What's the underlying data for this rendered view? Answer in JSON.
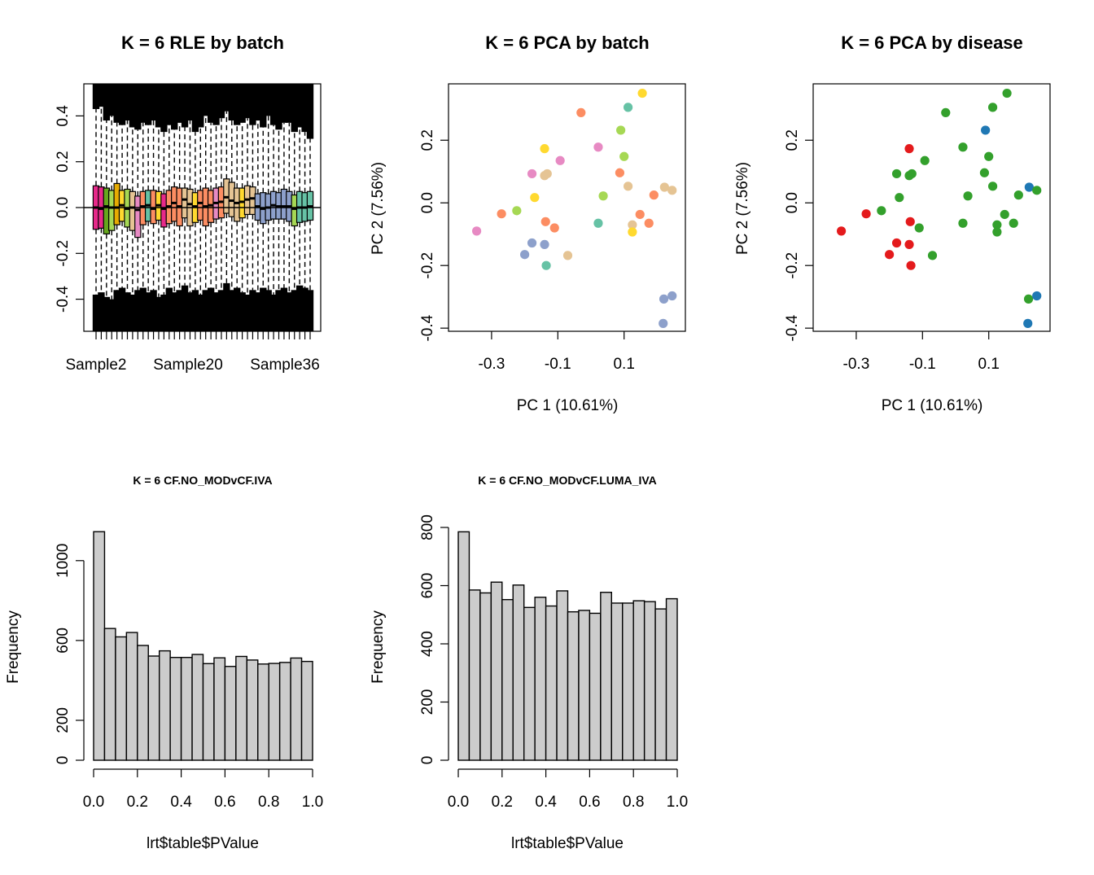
{
  "chart_data": [
    {
      "type": "boxplot",
      "title": "K = 6 RLE by batch",
      "xlabel": "",
      "ylabel": "",
      "ylim": [
        -0.54,
        0.54
      ],
      "yticks": [
        "-0.4",
        "-0.2",
        "0.0",
        "0.2",
        "0.4"
      ],
      "ytick_values": [
        -0.4,
        -0.2,
        0.0,
        0.2,
        0.4
      ],
      "xtick_labels": [
        "Sample2",
        "Sample20",
        "Sample36"
      ],
      "grid": false,
      "reference_line": 0,
      "box_colors": [
        "#E7298A",
        "#E7298A",
        "#66A61E",
        "#A6D854",
        "#E6AB02",
        "#FFD92F",
        "#A6D854",
        "#E5C494",
        "#E78AC3",
        "#FC8D62",
        "#66C2A5",
        "#FC8D62",
        "#FFD92F",
        "#E7298A",
        "#FC8D62",
        "#FC8D62",
        "#FC8D62",
        "#E5C494",
        "#E5C494",
        "#FFD92F",
        "#FC8D62",
        "#FC8D62",
        "#FC8D62",
        "#E78AC3",
        "#FC8D62",
        "#E5C494",
        "#E5C494",
        "#E5C494",
        "#FFD92F",
        "#E5C494",
        "#E5C494",
        "#8DA0CB",
        "#8DA0CB",
        "#8DA0CB",
        "#8DA0CB",
        "#8DA0CB",
        "#8DA0CB",
        "#8DA0CB",
        "#A6D854",
        "#66C2A5",
        "#66C2A5",
        "#66C2A5"
      ],
      "box_q1": [
        -0.095,
        -0.09,
        -0.115,
        -0.1,
        -0.075,
        -0.06,
        -0.085,
        -0.1,
        -0.13,
        -0.075,
        -0.06,
        -0.07,
        -0.055,
        -0.085,
        -0.07,
        -0.06,
        -0.08,
        -0.045,
        -0.08,
        -0.065,
        -0.055,
        -0.08,
        -0.065,
        -0.05,
        -0.045,
        -0.025,
        -0.04,
        -0.06,
        -0.045,
        -0.03,
        -0.03,
        -0.055,
        -0.07,
        -0.055,
        -0.05,
        -0.05,
        -0.05,
        -0.06,
        -0.08,
        -0.065,
        -0.06,
        -0.055
      ],
      "box_median": [
        0,
        -0.005,
        0.005,
        0,
        0,
        0.01,
        -0.005,
        0,
        -0.01,
        0.005,
        0.01,
        -0.005,
        0.01,
        -0.005,
        0.005,
        0.02,
        0.005,
        0.035,
        0.015,
        0.005,
        0.02,
        0.005,
        0.01,
        0.02,
        0.025,
        0.045,
        0.03,
        0.02,
        0.025,
        0.035,
        0.04,
        0.005,
        -0.005,
        0,
        0.01,
        0.005,
        0.005,
        0.005,
        -0.005,
        0,
        0,
        0.005
      ],
      "box_q3": [
        0.095,
        0.09,
        0.085,
        0.075,
        0.105,
        0.075,
        0.08,
        0.07,
        0.05,
        0.07,
        0.075,
        0.075,
        0.07,
        0.06,
        0.075,
        0.09,
        0.085,
        0.085,
        0.08,
        0.065,
        0.075,
        0.085,
        0.075,
        0.085,
        0.09,
        0.125,
        0.11,
        0.085,
        0.085,
        0.095,
        0.09,
        0.06,
        0.065,
        0.06,
        0.07,
        0.065,
        0.08,
        0.07,
        0.055,
        0.07,
        0.065,
        0.07
      ],
      "whisker_high": [
        0.43,
        0.44,
        0.38,
        0.4,
        0.37,
        0.36,
        0.38,
        0.35,
        0.34,
        0.37,
        0.36,
        0.38,
        0.35,
        0.33,
        0.36,
        0.34,
        0.37,
        0.35,
        0.38,
        0.33,
        0.35,
        0.4,
        0.37,
        0.36,
        0.39,
        0.42,
        0.38,
        0.36,
        0.37,
        0.39,
        0.36,
        0.38,
        0.35,
        0.4,
        0.36,
        0.34,
        0.37,
        0.37,
        0.33,
        0.35,
        0.33,
        0.3
      ],
      "whisker_low": [
        -0.38,
        -0.37,
        -0.39,
        -0.4,
        -0.36,
        -0.35,
        -0.37,
        -0.38,
        -0.36,
        -0.35,
        -0.37,
        -0.36,
        -0.39,
        -0.38,
        -0.35,
        -0.37,
        -0.36,
        -0.34,
        -0.37,
        -0.36,
        -0.38,
        -0.36,
        -0.35,
        -0.37,
        -0.36,
        -0.33,
        -0.36,
        -0.35,
        -0.37,
        -0.38,
        -0.36,
        -0.37,
        -0.35,
        -0.36,
        -0.38,
        -0.36,
        -0.35,
        -0.37,
        -0.36,
        -0.34,
        -0.35,
        -0.36
      ]
    },
    {
      "type": "scatter",
      "title": "K = 6 PCA by batch",
      "xlabel": "PC 1 (10.61%)",
      "ylabel": "PC 2 (7.56%)",
      "xlim": [
        -0.43,
        0.285
      ],
      "ylim": [
        -0.41,
        0.38
      ],
      "xticks": [
        "-0.3",
        "-0.1",
        "0.1"
      ],
      "xtick_values": [
        -0.3,
        -0.1,
        0.1
      ],
      "yticks": [
        "-0.4",
        "-0.2",
        "0.0",
        "0.2"
      ],
      "ytick_values": [
        -0.4,
        -0.2,
        0.0,
        0.2
      ],
      "grid": false,
      "points": [
        {
          "x": -0.345,
          "y": -0.09,
          "color": "#E78AC3"
        },
        {
          "x": -0.27,
          "y": -0.035,
          "color": "#FC8D62"
        },
        {
          "x": -0.224,
          "y": -0.025,
          "color": "#A6D854"
        },
        {
          "x": -0.2,
          "y": -0.165,
          "color": "#8DA0CB"
        },
        {
          "x": -0.178,
          "y": 0.093,
          "color": "#E78AC3"
        },
        {
          "x": -0.178,
          "y": -0.128,
          "color": "#8DA0CB"
        },
        {
          "x": -0.17,
          "y": 0.017,
          "color": "#FFD92F"
        },
        {
          "x": -0.14,
          "y": 0.173,
          "color": "#FFD92F"
        },
        {
          "x": -0.14,
          "y": 0.087,
          "color": "#E5C494"
        },
        {
          "x": -0.132,
          "y": 0.093,
          "color": "#E5C494"
        },
        {
          "x": -0.137,
          "y": -0.06,
          "color": "#FC8D62"
        },
        {
          "x": -0.14,
          "y": -0.133,
          "color": "#8DA0CB"
        },
        {
          "x": -0.135,
          "y": -0.2,
          "color": "#66C2A5"
        },
        {
          "x": -0.11,
          "y": -0.08,
          "color": "#FC8D62"
        },
        {
          "x": -0.093,
          "y": 0.135,
          "color": "#E78AC3"
        },
        {
          "x": -0.07,
          "y": -0.168,
          "color": "#E5C494"
        },
        {
          "x": -0.03,
          "y": 0.288,
          "color": "#FC8D62"
        },
        {
          "x": 0.022,
          "y": 0.178,
          "color": "#E78AC3"
        },
        {
          "x": 0.022,
          "y": -0.065,
          "color": "#66C2A5"
        },
        {
          "x": 0.037,
          "y": 0.022,
          "color": "#A6D854"
        },
        {
          "x": 0.087,
          "y": 0.096,
          "color": "#FC8D62"
        },
        {
          "x": 0.09,
          "y": 0.232,
          "color": "#A6D854"
        },
        {
          "x": 0.1,
          "y": 0.148,
          "color": "#A6D854"
        },
        {
          "x": 0.112,
          "y": 0.305,
          "color": "#66C2A5"
        },
        {
          "x": 0.112,
          "y": 0.053,
          "color": "#E5C494"
        },
        {
          "x": 0.125,
          "y": -0.07,
          "color": "#E5C494"
        },
        {
          "x": 0.125,
          "y": -0.093,
          "color": "#FFD92F"
        },
        {
          "x": 0.148,
          "y": -0.037,
          "color": "#FC8D62"
        },
        {
          "x": 0.155,
          "y": 0.35,
          "color": "#FFD92F"
        },
        {
          "x": 0.175,
          "y": -0.065,
          "color": "#FC8D62"
        },
        {
          "x": 0.19,
          "y": 0.025,
          "color": "#FC8D62"
        },
        {
          "x": 0.222,
          "y": 0.05,
          "color": "#E5C494"
        },
        {
          "x": 0.245,
          "y": 0.04,
          "color": "#E5C494"
        },
        {
          "x": 0.22,
          "y": -0.307,
          "color": "#8DA0CB"
        },
        {
          "x": 0.245,
          "y": -0.297,
          "color": "#8DA0CB"
        },
        {
          "x": 0.218,
          "y": -0.385,
          "color": "#8DA0CB"
        }
      ]
    },
    {
      "type": "scatter",
      "title": "K = 6 PCA by disease",
      "xlabel": "PC 1 (10.61%)",
      "ylabel": "PC 2 (7.56%)",
      "xlim": [
        -0.43,
        0.285
      ],
      "ylim": [
        -0.41,
        0.38
      ],
      "xticks": [
        "-0.3",
        "-0.1",
        "0.1"
      ],
      "xtick_values": [
        -0.3,
        -0.1,
        0.1
      ],
      "yticks": [
        "-0.4",
        "-0.2",
        "0.0",
        "0.2"
      ],
      "ytick_values": [
        -0.4,
        -0.2,
        0.0,
        0.2
      ],
      "grid": false,
      "points": [
        {
          "x": -0.345,
          "y": -0.09,
          "color": "#E41A1C"
        },
        {
          "x": -0.27,
          "y": -0.035,
          "color": "#E41A1C"
        },
        {
          "x": -0.224,
          "y": -0.025,
          "color": "#33A02C"
        },
        {
          "x": -0.2,
          "y": -0.165,
          "color": "#E41A1C"
        },
        {
          "x": -0.178,
          "y": 0.093,
          "color": "#33A02C"
        },
        {
          "x": -0.178,
          "y": -0.128,
          "color": "#E41A1C"
        },
        {
          "x": -0.17,
          "y": 0.017,
          "color": "#33A02C"
        },
        {
          "x": -0.14,
          "y": 0.173,
          "color": "#E41A1C"
        },
        {
          "x": -0.14,
          "y": 0.087,
          "color": "#33A02C"
        },
        {
          "x": -0.132,
          "y": 0.093,
          "color": "#33A02C"
        },
        {
          "x": -0.137,
          "y": -0.06,
          "color": "#E41A1C"
        },
        {
          "x": -0.14,
          "y": -0.133,
          "color": "#E41A1C"
        },
        {
          "x": -0.135,
          "y": -0.2,
          "color": "#E41A1C"
        },
        {
          "x": -0.11,
          "y": -0.08,
          "color": "#33A02C"
        },
        {
          "x": -0.093,
          "y": 0.135,
          "color": "#33A02C"
        },
        {
          "x": -0.07,
          "y": -0.168,
          "color": "#33A02C"
        },
        {
          "x": -0.03,
          "y": 0.288,
          "color": "#33A02C"
        },
        {
          "x": 0.022,
          "y": 0.178,
          "color": "#33A02C"
        },
        {
          "x": 0.022,
          "y": -0.065,
          "color": "#33A02C"
        },
        {
          "x": 0.037,
          "y": 0.022,
          "color": "#33A02C"
        },
        {
          "x": 0.087,
          "y": 0.096,
          "color": "#33A02C"
        },
        {
          "x": 0.09,
          "y": 0.232,
          "color": "#1F78B4"
        },
        {
          "x": 0.1,
          "y": 0.148,
          "color": "#33A02C"
        },
        {
          "x": 0.112,
          "y": 0.305,
          "color": "#33A02C"
        },
        {
          "x": 0.112,
          "y": 0.053,
          "color": "#33A02C"
        },
        {
          "x": 0.125,
          "y": -0.07,
          "color": "#33A02C"
        },
        {
          "x": 0.125,
          "y": -0.093,
          "color": "#33A02C"
        },
        {
          "x": 0.148,
          "y": -0.037,
          "color": "#33A02C"
        },
        {
          "x": 0.155,
          "y": 0.35,
          "color": "#33A02C"
        },
        {
          "x": 0.175,
          "y": -0.065,
          "color": "#33A02C"
        },
        {
          "x": 0.19,
          "y": 0.025,
          "color": "#33A02C"
        },
        {
          "x": 0.222,
          "y": 0.05,
          "color": "#1F78B4"
        },
        {
          "x": 0.245,
          "y": 0.04,
          "color": "#33A02C"
        },
        {
          "x": 0.22,
          "y": -0.307,
          "color": "#33A02C"
        },
        {
          "x": 0.245,
          "y": -0.297,
          "color": "#1F78B4"
        },
        {
          "x": 0.218,
          "y": -0.385,
          "color": "#1F78B4"
        }
      ]
    },
    {
      "type": "bar",
      "title": "K = 6 CF.NO_MODvCF.IVA",
      "xlabel": "lrt$table$PValue",
      "ylabel": "Frequency",
      "xlim": [
        0,
        1
      ],
      "ylim": [
        0,
        1150
      ],
      "bin_width": 0.05,
      "values": [
        1145,
        660,
        618,
        640,
        575,
        522,
        548,
        515,
        515,
        530,
        484,
        513,
        470,
        520,
        502,
        482,
        485,
        490,
        512,
        495
      ],
      "bar_color": "#CCCCCC",
      "xticks": [
        "0.0",
        "0.2",
        "0.4",
        "0.6",
        "0.8",
        "1.0"
      ],
      "xtick_values": [
        0,
        0.2,
        0.4,
        0.6,
        0.8,
        1.0
      ],
      "yticks": [
        "0",
        "200",
        "600",
        "1000"
      ],
      "ytick_values": [
        0,
        200,
        600,
        1000
      ],
      "grid": false
    },
    {
      "type": "bar",
      "title": "K = 6 CF.NO_MODvCF.LUMA_IVA",
      "xlabel": "lrt$table$PValue",
      "ylabel": "Frequency",
      "xlim": [
        0,
        1
      ],
      "ylim": [
        0,
        800
      ],
      "bin_width": 0.05,
      "values": [
        785,
        585,
        575,
        612,
        552,
        602,
        525,
        560,
        530,
        582,
        510,
        515,
        505,
        577,
        540,
        540,
        548,
        545,
        520,
        555
      ],
      "bar_color": "#CCCCCC",
      "xticks": [
        "0.0",
        "0.2",
        "0.4",
        "0.6",
        "0.8",
        "1.0"
      ],
      "xtick_values": [
        0,
        0.2,
        0.4,
        0.6,
        0.8,
        1.0
      ],
      "yticks": [
        "0",
        "200",
        "400",
        "600",
        "800"
      ],
      "ytick_values": [
        0,
        200,
        400,
        600,
        800
      ],
      "grid": false
    }
  ]
}
